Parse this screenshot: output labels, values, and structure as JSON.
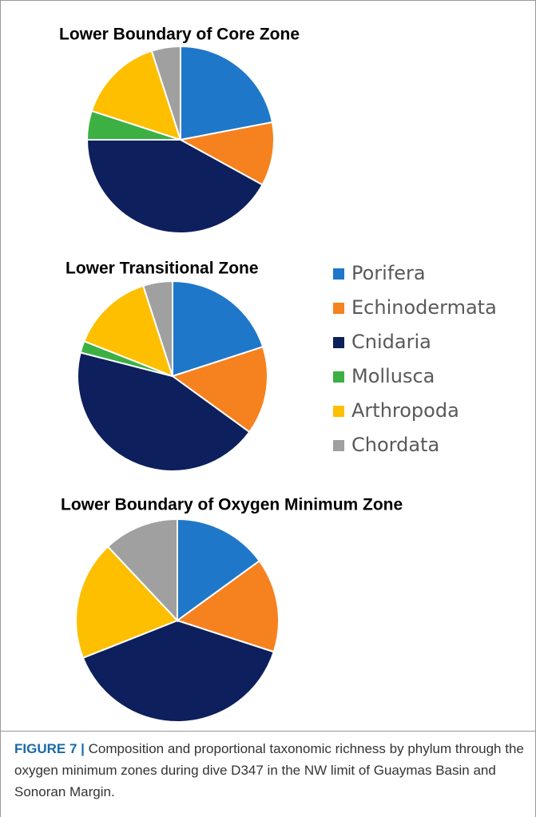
{
  "chart_data": [
    {
      "type": "pie",
      "title": "Lower Boundary of Core Zone",
      "categories": [
        "Porifera",
        "Echinodermata",
        "Cnidaria",
        "Mollusca",
        "Arthropoda",
        "Chordata"
      ],
      "values": [
        22,
        11,
        42,
        5,
        15,
        5
      ],
      "colors": [
        "#1f77c9",
        "#f5821f",
        "#0d1f5c",
        "#3cb043",
        "#fdbf00",
        "#a0a0a0"
      ]
    },
    {
      "type": "pie",
      "title": "Lower Transitional Zone",
      "categories": [
        "Porifera",
        "Echinodermata",
        "Cnidaria",
        "Mollusca",
        "Arthropoda",
        "Chordata"
      ],
      "values": [
        20,
        15,
        44,
        2,
        14,
        5
      ],
      "colors": [
        "#1f77c9",
        "#f5821f",
        "#0d1f5c",
        "#3cb043",
        "#fdbf00",
        "#a0a0a0"
      ],
      "legend": "right"
    },
    {
      "type": "pie",
      "title": "Lower Boundary of Oxygen Minimum Zone",
      "categories": [
        "Porifera",
        "Echinodermata",
        "Cnidaria",
        "Mollusca",
        "Arthropoda",
        "Chordata"
      ],
      "values": [
        15,
        15,
        39,
        0,
        19,
        12
      ],
      "colors": [
        "#1f77c9",
        "#f5821f",
        "#0d1f5c",
        "#3cb043",
        "#fdbf00",
        "#a0a0a0"
      ]
    }
  ],
  "caption": {
    "label": "FIGURE 7 |",
    "text": "Composition and proportional taxonomic richness by phylum through the oxygen minimum zones during dive D347 in the NW limit of Guaymas Basin and Sonoran Margin."
  }
}
